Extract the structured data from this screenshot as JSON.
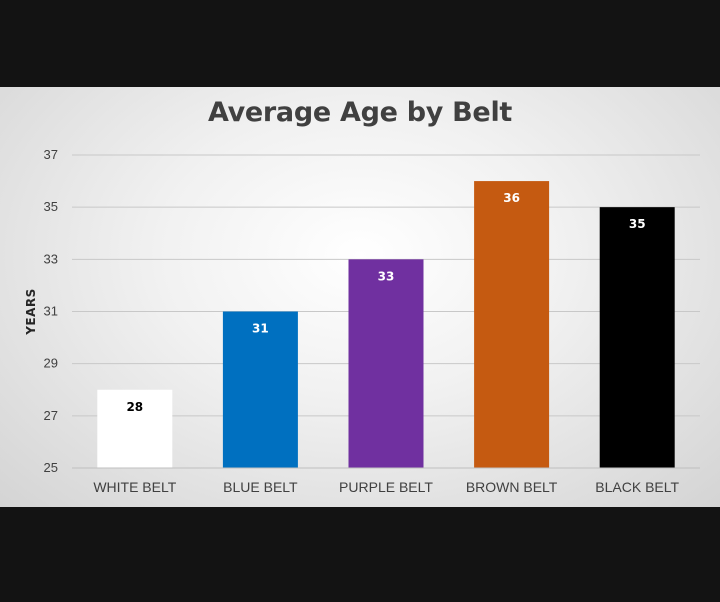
{
  "chart_data": {
    "type": "bar",
    "title": "Average Age by Belt",
    "xlabel": "",
    "ylabel": "YEARS",
    "categories": [
      "WHITE BELT",
      "BLUE BELT",
      "PURPLE BELT",
      "BROWN BELT",
      "BLACK BELT"
    ],
    "values": [
      28,
      31,
      33,
      36,
      35
    ],
    "data_labels": [
      "28",
      "31",
      "33",
      "36",
      "35"
    ],
    "ylim": [
      25,
      37
    ],
    "yticks": [
      "25",
      "27",
      "29",
      "31",
      "33",
      "35",
      "37"
    ],
    "grid": true,
    "legend": "none",
    "colors": [
      "#ffffff",
      "#0070c0",
      "#7030a0",
      "#c55a11",
      "#000000"
    ],
    "label_colors": [
      "#000000",
      "#ffffff",
      "#ffffff",
      "#ffffff",
      "#ffffff"
    ]
  }
}
